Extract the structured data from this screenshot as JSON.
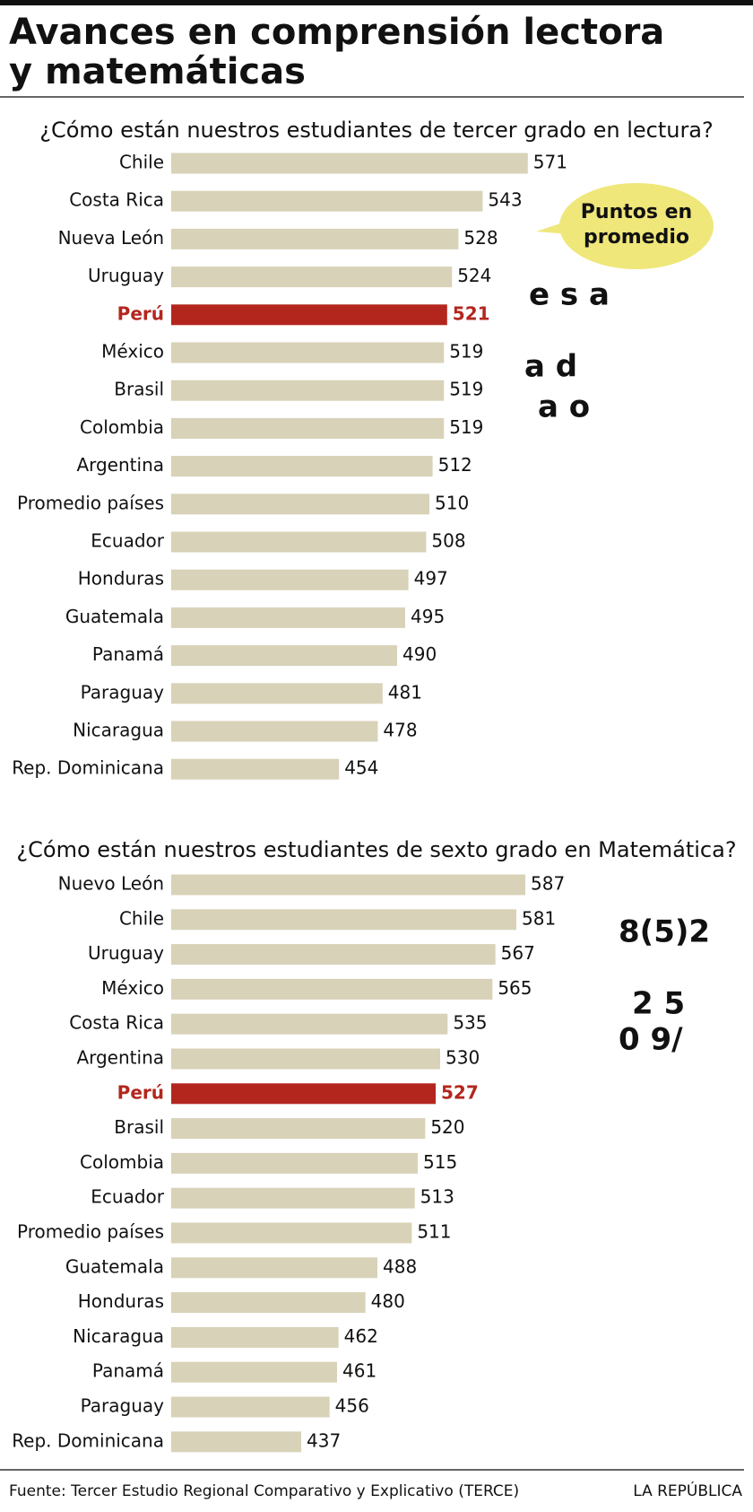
{
  "header": {
    "title": [
      "Avances en comprensión lectora",
      "y matemáticas"
    ]
  },
  "callout": [
    "Puntos en",
    "promedio"
  ],
  "chart_data": [
    {
      "type": "bar",
      "orientation": "horizontal",
      "title": "¿Cómo están nuestros estudiantes de tercer grado en lectura?",
      "categories": [
        "Chile",
        "Costa Rica",
        "Nueva León",
        "Uruguay",
        "Perú",
        "México",
        "Brasil",
        "Colombia",
        "Argentina",
        "Promedio países",
        "Ecuador",
        "Honduras",
        "Guatemala",
        "Panamá",
        "Paraguay",
        "Nicaragua",
        "Rep. Dominicana"
      ],
      "values": [
        571,
        543,
        528,
        524,
        521,
        519,
        519,
        519,
        512,
        510,
        508,
        497,
        495,
        490,
        481,
        478,
        454
      ],
      "color": "#d8d2b8",
      "colors": [
        "#d8d2b8",
        "#d8d2b8",
        "#d8d2b8",
        "#d8d2b8",
        "#b3261e",
        "#d8d2b8",
        "#d8d2b8",
        "#d8d2b8",
        "#d8d2b8",
        "#d8d2b8",
        "#d8d2b8",
        "#d8d2b8",
        "#d8d2b8",
        "#d8d2b8",
        "#d8d2b8",
        "#d8d2b8",
        "#d8d2b8"
      ],
      "xlim": [
        350,
        600
      ]
    },
    {
      "type": "bar",
      "orientation": "horizontal",
      "title": "¿Cómo están nuestros estudiantes de sexto grado en Matemática?",
      "categories": [
        "Nuevo León",
        "Chile",
        "Uruguay",
        "México",
        "Costa Rica",
        "Argentina",
        "Perú",
        "Brasil",
        "Colombia",
        "Ecuador",
        "Promedio países",
        "Guatemala",
        "Honduras",
        "Nicaragua",
        "Panamá",
        "Paraguay",
        "Rep. Dominicana"
      ],
      "values": [
        587,
        581,
        567,
        565,
        535,
        530,
        527,
        520,
        515,
        513,
        511,
        488,
        480,
        462,
        461,
        456,
        437
      ],
      "color": "#d8d2b8",
      "colors": [
        "#d8d2b8",
        "#d8d2b8",
        "#d8d2b8",
        "#d8d2b8",
        "#d8d2b8",
        "#d8d2b8",
        "#b3261e",
        "#d8d2b8",
        "#d8d2b8",
        "#d8d2b8",
        "#d8d2b8",
        "#d8d2b8",
        "#d8d2b8",
        "#d8d2b8",
        "#d8d2b8",
        "#d8d2b8",
        "#d8d2b8"
      ],
      "xlim": [
        350,
        620
      ]
    }
  ],
  "footer": {
    "source": "Fuente: Tercer Estudio Regional Comparativo y Explicativo (TERCE)",
    "brand": "LA REPÚBLICA"
  }
}
